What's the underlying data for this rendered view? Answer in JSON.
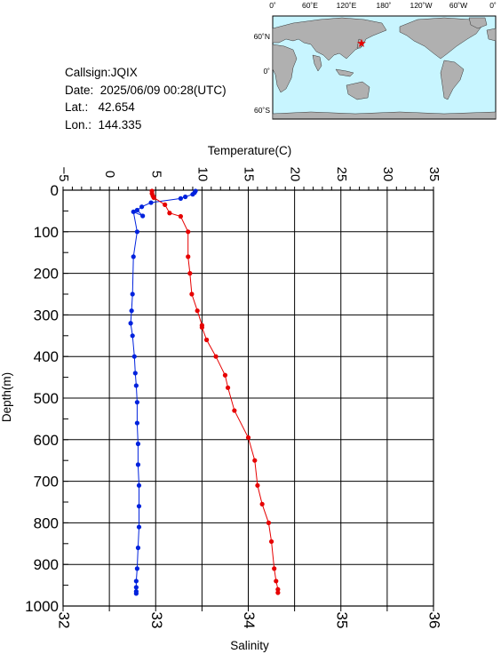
{
  "info": {
    "callsign": "Callsign:JQIX",
    "date": "Date:  2025/06/09 00:28(UTC)",
    "lat": "Lat.:   42.654",
    "lon": "Lon.:  144.335"
  },
  "map": {
    "top_labels": [
      "0˚",
      "60˚E",
      "120˚E",
      "180˚",
      "120˚W",
      "60˚W",
      "0˚"
    ],
    "right_labels": [
      "60˚N",
      "0˚",
      "60˚S"
    ],
    "ocean_color": "#c8f5ff",
    "land_color": "#b0b0b0",
    "marker_color": "#e60000",
    "marker_lat": 42.654,
    "marker_lon": 144.335
  },
  "chart_data": {
    "type": "line",
    "xlabel_top": "Temperature(C)",
    "xlabel_bottom": "Salinity",
    "ylabel": "Depth(m)",
    "temperature_ticks": [
      "−5",
      "0",
      "5",
      "10",
      "15",
      "20",
      "25",
      "30",
      "35"
    ],
    "salinity_ticks": [
      "32",
      "33",
      "34",
      "35",
      "36"
    ],
    "depth_ticks": [
      "0",
      "100",
      "200",
      "300",
      "400",
      "500",
      "600",
      "700",
      "800",
      "900",
      "1000"
    ],
    "temperature_range": [
      -5,
      35
    ],
    "salinity_range": [
      32,
      36
    ],
    "depth_range": [
      0,
      1000
    ],
    "grid": true,
    "series": [
      {
        "color": "#0022dd",
        "axis": "temperature",
        "points": [
          [
            9.3,
            2
          ],
          [
            9.2,
            6
          ],
          [
            9.0,
            10
          ],
          [
            8.2,
            16
          ],
          [
            7.7,
            20
          ],
          [
            4.5,
            30
          ],
          [
            3.5,
            40
          ],
          [
            3.0,
            48
          ],
          [
            3.6,
            62
          ],
          [
            2.6,
            52
          ],
          [
            3.0,
            100
          ],
          [
            2.6,
            160
          ],
          [
            2.5,
            250
          ],
          [
            2.4,
            290
          ],
          [
            2.3,
            320
          ],
          [
            2.5,
            350
          ],
          [
            2.7,
            400
          ],
          [
            2.8,
            440
          ],
          [
            2.9,
            470
          ],
          [
            3.0,
            510
          ],
          [
            3.0,
            560
          ],
          [
            3.1,
            610
          ],
          [
            3.1,
            660
          ],
          [
            3.2,
            710
          ],
          [
            3.2,
            760
          ],
          [
            3.2,
            810
          ],
          [
            3.1,
            860
          ],
          [
            3.0,
            910
          ],
          [
            2.9,
            940
          ],
          [
            2.9,
            955
          ],
          [
            2.9,
            965
          ],
          [
            2.9,
            970
          ]
        ]
      },
      {
        "color": "#e60000",
        "axis": "salinity",
        "points": [
          [
            32.96,
            2
          ],
          [
            32.96,
            8
          ],
          [
            32.97,
            14
          ],
          [
            32.98,
            18
          ],
          [
            33.1,
            35
          ],
          [
            33.15,
            55
          ],
          [
            33.27,
            63
          ],
          [
            33.35,
            100
          ],
          [
            33.35,
            160
          ],
          [
            33.37,
            200
          ],
          [
            33.39,
            250
          ],
          [
            33.45,
            290
          ],
          [
            33.5,
            325
          ],
          [
            33.5,
            330
          ],
          [
            33.55,
            360
          ],
          [
            33.65,
            400
          ],
          [
            33.75,
            445
          ],
          [
            33.78,
            475
          ],
          [
            33.85,
            530
          ],
          [
            34.0,
            595
          ],
          [
            34.07,
            650
          ],
          [
            34.1,
            710
          ],
          [
            34.15,
            755
          ],
          [
            34.22,
            800
          ],
          [
            34.25,
            845
          ],
          [
            34.28,
            910
          ],
          [
            34.3,
            940
          ],
          [
            34.32,
            960
          ],
          [
            34.32,
            968
          ]
        ]
      }
    ]
  }
}
